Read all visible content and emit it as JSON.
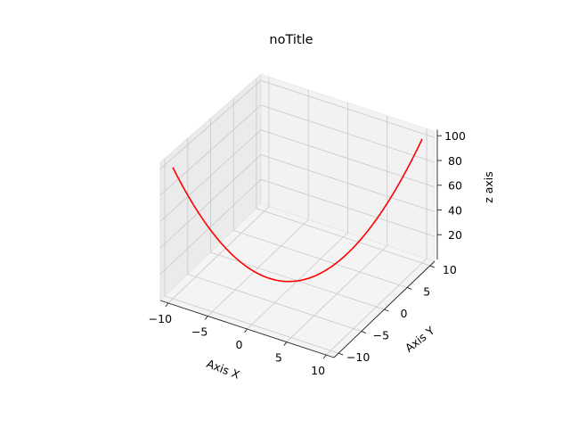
{
  "chart_data": {
    "type": "line",
    "projection": "3d",
    "title": "noTitle",
    "xlabel": "Axis X",
    "ylabel": "Axis Y",
    "zlabel": "z axis",
    "xlim": [
      -11,
      11
    ],
    "ylim": [
      -11,
      11
    ],
    "zlim": [
      0,
      105
    ],
    "xticks": [
      "−10",
      "−5",
      "0",
      "5",
      "10"
    ],
    "yticks": [
      "−10",
      "−5",
      "0",
      "5",
      "10"
    ],
    "zticks": [
      "20",
      "40",
      "60",
      "80",
      "100"
    ],
    "grid": true,
    "series": [
      {
        "color": "#ff0000",
        "x": [
          -10,
          -9,
          -8,
          -7,
          -6,
          -5,
          -4,
          -3,
          -2,
          -1,
          0,
          1,
          2,
          3,
          4,
          5,
          6,
          7,
          8,
          9,
          10
        ],
        "y": [
          -10,
          -9,
          -8,
          -7,
          -6,
          -5,
          -4,
          -3,
          -2,
          -1,
          0,
          1,
          2,
          3,
          4,
          5,
          6,
          7,
          8,
          9,
          10
        ],
        "z": [
          100,
          81,
          64,
          49,
          36,
          25,
          16,
          9,
          4,
          1,
          0,
          1,
          4,
          9,
          16,
          25,
          36,
          49,
          64,
          81,
          100
        ]
      }
    ]
  }
}
